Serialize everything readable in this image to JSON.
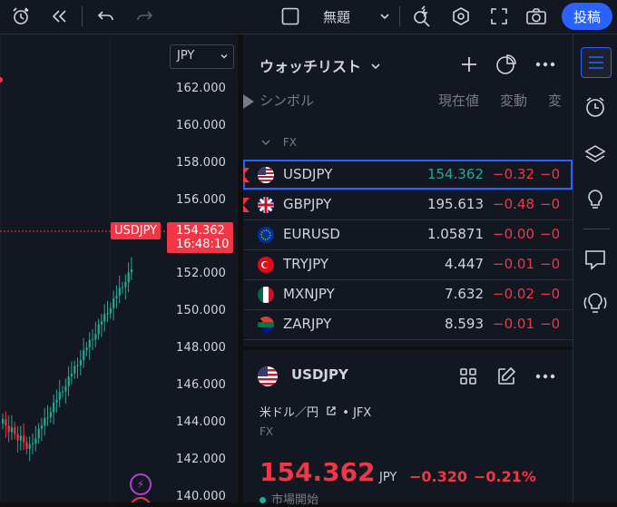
{
  "toolbar": {
    "layout_name": "無題",
    "post_label": "投稿"
  },
  "chart": {
    "currency": "JPY",
    "y_ticks": [
      "162.000",
      "160.000",
      "158.000",
      "156.000",
      "154.000",
      "152.000",
      "150.000",
      "148.000",
      "146.000",
      "144.000",
      "142.000",
      "140.000"
    ],
    "symbol_tag": "USDJPY",
    "last_price": "154.362",
    "countdown": "16:48:10"
  },
  "watchlist": {
    "title": "ウォッチリスト",
    "columns": {
      "symbol": "シンボル",
      "last": "現在値",
      "change": "変動",
      "change_pct": "変"
    },
    "section": "FX",
    "rows": [
      {
        "symbol": "USDJPY",
        "last": "154.362",
        "change": "−0.32",
        "change_pct": "−0",
        "price_color": "#22ab94"
      },
      {
        "symbol": "GBPJPY",
        "last": "195.613",
        "change": "−0.48",
        "change_pct": "−0",
        "price_color": "#d1d4dc"
      },
      {
        "symbol": "EURUSD",
        "last": "1.05871",
        "change": "−0.00",
        "change_pct": "−0",
        "price_color": "#d1d4dc"
      },
      {
        "symbol": "TRYJPY",
        "last": "4.447",
        "change": "−0.01",
        "change_pct": "−0",
        "price_color": "#d1d4dc"
      },
      {
        "symbol": "MXNJPY",
        "last": "7.632",
        "change": "−0.02",
        "change_pct": "−0",
        "price_color": "#d1d4dc"
      },
      {
        "symbol": "ZARJPY",
        "last": "8.593",
        "change": "−0.01",
        "change_pct": "−0",
        "price_color": "#d1d4dc"
      }
    ]
  },
  "details": {
    "symbol": "USDJPY",
    "name": "米ドル／円",
    "exchange": "• JFX",
    "category": "FX",
    "price": "154.362",
    "currency": "JPY",
    "change": "−0.320",
    "change_pct": "−0.21%",
    "status": "市場開始"
  },
  "colors": {
    "up": "#22ab94",
    "down": "#f23645",
    "accent": "#2962ff"
  }
}
